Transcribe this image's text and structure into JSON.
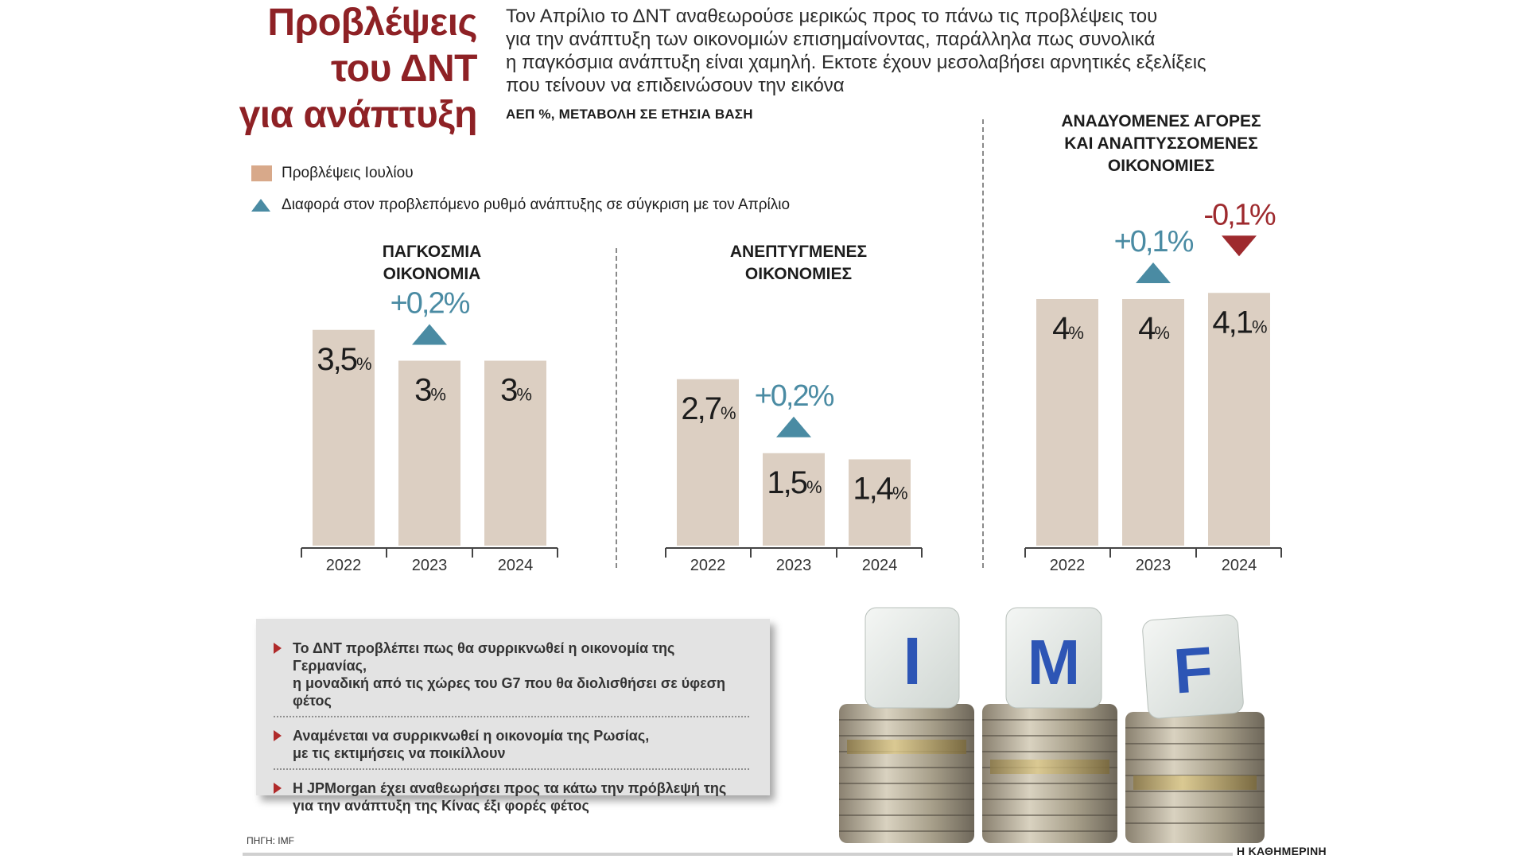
{
  "header": {
    "title_lines": [
      "Προβλέψεις",
      "του ΔΝΤ",
      "για ανάπτυξη"
    ],
    "intro_lines": [
      "Τον Απρίλιο το ΔΝΤ αναθεωρούσε μερικώς προς το πάνω τις προβλέψεις του",
      "για την ανάπτυξη των οικονομιών επισημαίνοντας, παράλληλα πως συνολικά",
      "η παγκόσμια ανάπτυξη είναι χαμηλή. Εκτοτε έχουν μεσολαβήσει αρνητικές εξελίξεις",
      "που τείνουν να επιδεινώσουν την εικόνα"
    ],
    "unit": "ΑΕΠ %, ΜΕΤΑΒΟΛΗ ΣΕ ΕΤΗΣΙΑ ΒΑΣΗ"
  },
  "legend": {
    "bars_label": "Προβλέψεις Ιουλίου",
    "arrow_label": "Διαφορά στον προβλεπόμενο ρυθμό ανάπτυξης σε σύγκριση με τον Απρίλιο"
  },
  "colors": {
    "bar": "#dccfc2",
    "up": "#4a8ba3",
    "down": "#9e2a2e",
    "title": "#8e2125",
    "legend_bar": "#d8a98a"
  },
  "chart_data": [
    {
      "type": "bar",
      "title_lines": [
        "ΠΑΓΚΟΣΜΙΑ",
        "ΟΙΚΟΝΟΜΙΑ"
      ],
      "categories": [
        "2022",
        "2023",
        "2024"
      ],
      "values": [
        3.5,
        3,
        3
      ],
      "value_labels": [
        "3,5",
        "3",
        "3"
      ],
      "unit_suffix": "%",
      "changes": [
        {
          "category": "2023",
          "label": "+0,2%",
          "direction": "up"
        }
      ]
    },
    {
      "type": "bar",
      "title_lines": [
        "ΑΝΕΠΤΥΓΜΕΝΕΣ",
        "ΟΙΚΟΝΟΜΙΕΣ"
      ],
      "categories": [
        "2022",
        "2023",
        "2024"
      ],
      "values": [
        2.7,
        1.5,
        1.4
      ],
      "value_labels": [
        "2,7",
        "1,5",
        "1,4"
      ],
      "unit_suffix": "%",
      "changes": [
        {
          "category": "2023",
          "label": "+0,2%",
          "direction": "up"
        }
      ]
    },
    {
      "type": "bar",
      "title_lines": [
        "ΑΝΑΔΥΟΜΕΝΕΣ ΑΓΟΡΕΣ",
        "ΚΑΙ ΑΝΑΠΤΥΣΣΟΜΕΝΕΣ",
        "ΟΙΚΟΝΟΜΙΕΣ"
      ],
      "categories": [
        "2022",
        "2023",
        "2024"
      ],
      "values": [
        4,
        4,
        4.1
      ],
      "value_labels": [
        "4",
        "4",
        "4,1"
      ],
      "unit_suffix": "%",
      "changes": [
        {
          "category": "2023",
          "label": "+0,1%",
          "direction": "up"
        },
        {
          "category": "2024",
          "label": "-0,1%",
          "direction": "down"
        }
      ]
    }
  ],
  "notes": [
    {
      "lines": [
        "Το ΔΝΤ προβλέπει πως θα συρρικνωθεί η οικονομία της Γερμανίας,",
        "η μοναδική από τις χώρες του G7 που θα διολισθήσει σε ύφεση φέτος"
      ]
    },
    {
      "lines": [
        "Αναμένεται να συρρικνωθεί η οικονομία της Ρωσίας,",
        "με τις εκτιμήσεις να ποικίλλουν"
      ]
    },
    {
      "lines": [
        "Η JPMorgan έχει αναθεωρήσει προς τα κάτω την πρόβλεψή της",
        "για την ανάπτυξη της Κίνας έξι φορές φέτος"
      ]
    }
  ],
  "photo": {
    "letters": [
      "I",
      "M",
      "F"
    ]
  },
  "footer": {
    "source": "ΠΗΓΗ: IMF",
    "brand": "Η ΚΑΘΗΜΕΡΙΝΗ"
  }
}
